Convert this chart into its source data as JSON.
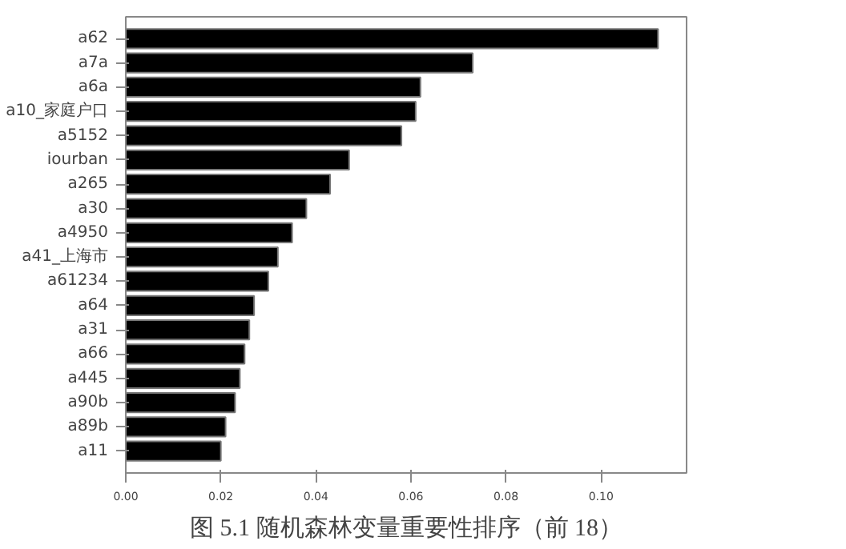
{
  "chart_data": {
    "type": "bar",
    "orientation": "horizontal",
    "categories": [
      "a62",
      "a7a",
      "a6a",
      "a10_家庭户口",
      "a5152",
      "iourban",
      "a265",
      "a30",
      "a4950",
      "a41_上海市",
      "a61234",
      "a64",
      "a31",
      "a66",
      "a445",
      "a90b",
      "a89b",
      "a11"
    ],
    "values": [
      0.112,
      0.073,
      0.062,
      0.061,
      0.058,
      0.047,
      0.043,
      0.038,
      0.035,
      0.032,
      0.03,
      0.027,
      0.026,
      0.025,
      0.024,
      0.023,
      0.021,
      0.02
    ],
    "color": "#000000",
    "xlim": [
      0,
      0.118
    ],
    "xticks": [
      {
        "value": 0,
        "label": "0.00"
      },
      {
        "value": 0.02,
        "label": "0.02"
      },
      {
        "value": 0.04,
        "label": "0.04"
      },
      {
        "value": 0.06,
        "label": "0.06"
      },
      {
        "value": 0.08,
        "label": "0.08"
      },
      {
        "value": 0.1,
        "label": "0.10"
      }
    ],
    "grid": false,
    "annotations": [
      "图 5.1 随机森林变量重要性排序（前 18）"
    ]
  }
}
